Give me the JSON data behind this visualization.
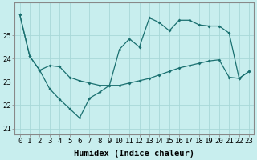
{
  "line1_x": [
    0,
    1,
    2,
    3,
    4,
    5,
    6,
    7,
    8,
    9,
    10,
    11,
    12,
    13,
    14,
    15,
    16,
    17,
    18,
    19,
    20,
    21,
    22,
    23
  ],
  "line1_y": [
    25.9,
    24.1,
    23.5,
    23.7,
    23.65,
    23.2,
    23.05,
    22.95,
    22.85,
    22.85,
    24.4,
    24.85,
    24.5,
    25.75,
    25.55,
    25.2,
    25.65,
    25.65,
    25.45,
    25.4,
    25.4,
    25.1,
    23.15,
    23.45
  ],
  "line2_x": [
    0,
    1,
    2,
    3,
    4,
    5,
    6,
    7,
    8,
    9,
    10,
    11,
    12,
    13,
    14,
    15,
    16,
    17,
    18,
    19,
    20,
    21,
    22,
    23
  ],
  "line2_y": [
    25.9,
    24.1,
    23.5,
    22.7,
    22.25,
    21.85,
    21.45,
    22.3,
    22.55,
    22.85,
    22.85,
    22.95,
    23.05,
    23.15,
    23.3,
    23.45,
    23.6,
    23.7,
    23.8,
    23.9,
    23.95,
    23.2,
    23.15,
    23.45
  ],
  "line_color": "#1a7070",
  "bg_color": "#c8eeee",
  "grid_color": "#a8d8d8",
  "xlabel": "Humidex (Indice chaleur)",
  "ylim": [
    20.75,
    26.4
  ],
  "xlim": [
    -0.5,
    23.5
  ],
  "yticks": [
    21,
    22,
    23,
    24,
    25
  ],
  "xticks": [
    0,
    1,
    2,
    3,
    4,
    5,
    6,
    7,
    8,
    9,
    10,
    11,
    12,
    13,
    14,
    15,
    16,
    17,
    18,
    19,
    20,
    21,
    22,
    23
  ],
  "xlabel_fontsize": 7.5,
  "tick_fontsize": 6.5
}
